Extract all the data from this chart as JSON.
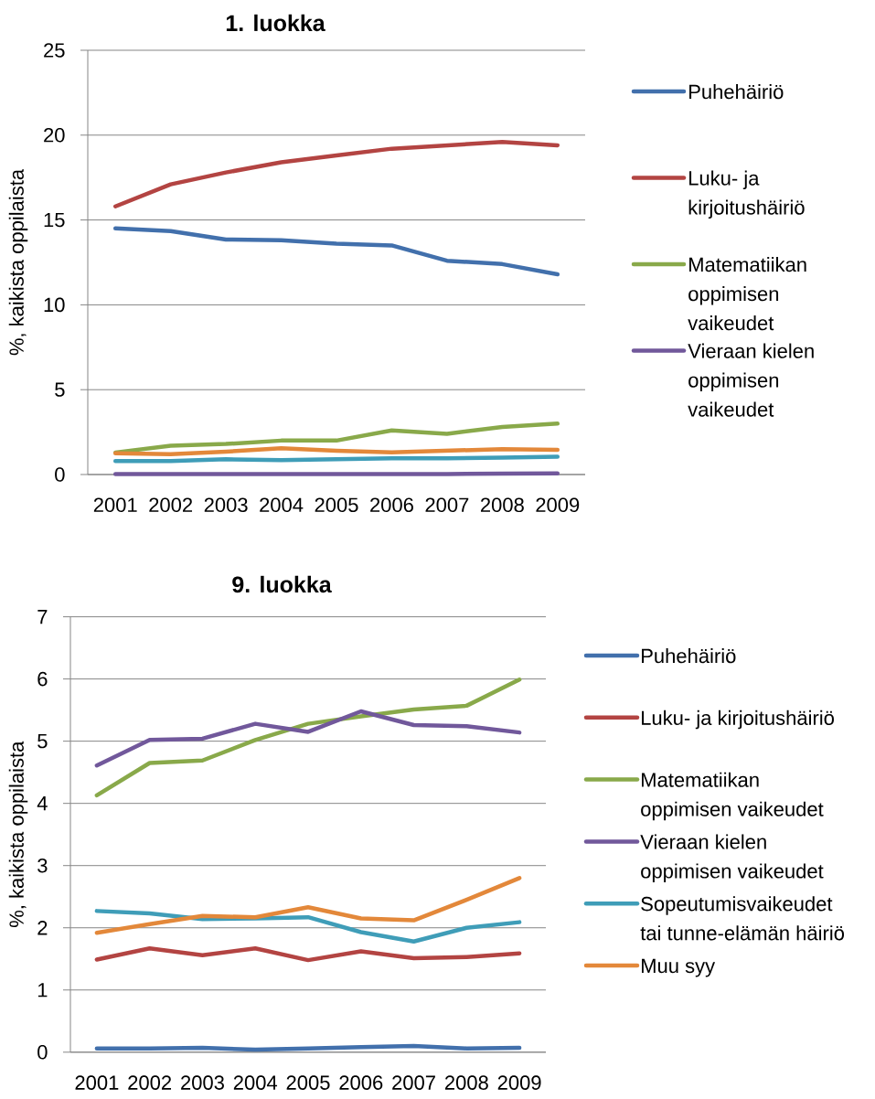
{
  "chart_data": [
    {
      "type": "line",
      "title": "1. luokka",
      "ylabel": "%, kaikista oppilaista",
      "categories": [
        "2001",
        "2002",
        "2003",
        "2004",
        "2005",
        "2006",
        "2007",
        "2008",
        "2009"
      ],
      "series": [
        {
          "name": "Puhehäiriö",
          "color": "#4270ac",
          "values": [
            14.5,
            14.35,
            13.85,
            13.8,
            13.6,
            13.5,
            12.6,
            12.4,
            11.8
          ]
        },
        {
          "name": "Luku- ja kirjoitushäiriö",
          "color": "#b34442",
          "values": [
            15.8,
            17.1,
            17.8,
            18.4,
            18.8,
            19.2,
            19.4,
            19.6,
            19.4
          ]
        },
        {
          "name": "Matematiikan oppimisen vaikeudet",
          "color": "#89a94a",
          "values": [
            1.3,
            1.7,
            1.8,
            2.0,
            2.0,
            2.6,
            2.4,
            2.8,
            3.0
          ]
        },
        {
          "name": "Vieraan kielen oppimisen vaikeudet",
          "color": "#71589b",
          "values": [
            0.02,
            0.02,
            0.02,
            0.02,
            0.02,
            0.03,
            0.03,
            0.05,
            0.07
          ]
        },
        {
          "color": "#3f9db8",
          "values": [
            0.8,
            0.8,
            0.9,
            0.85,
            0.9,
            0.95,
            0.95,
            1.0,
            1.05
          ]
        },
        {
          "color": "#e3883a",
          "values": [
            1.25,
            1.2,
            1.35,
            1.55,
            1.4,
            1.3,
            1.4,
            1.5,
            1.45
          ]
        }
      ],
      "ylim": [
        0,
        25
      ],
      "yticks": [
        0,
        5,
        10,
        15,
        20,
        25
      ],
      "grid": "y",
      "legend": "right"
    },
    {
      "type": "line",
      "title": "9. luokka",
      "ylabel": "%, kaikista oppilaista",
      "categories": [
        "2001",
        "2002",
        "2003",
        "2004",
        "2005",
        "2006",
        "2007",
        "2008",
        "2009"
      ],
      "series": [
        {
          "name": "Puhehäiriö",
          "color": "#4270ac",
          "values": [
            0.06,
            0.06,
            0.07,
            0.04,
            0.06,
            0.08,
            0.1,
            0.06,
            0.07
          ]
        },
        {
          "name": "Luku- ja kirjoitushäiriö",
          "color": "#b34442",
          "values": [
            1.49,
            1.67,
            1.56,
            1.67,
            1.48,
            1.62,
            1.51,
            1.53,
            1.59
          ]
        },
        {
          "name": "Matematiikan oppimisen vaikeudet",
          "color": "#89a94a",
          "values": [
            4.13,
            4.65,
            4.69,
            5.02,
            5.28,
            5.4,
            5.51,
            5.57,
            5.99
          ]
        },
        {
          "name": "Vieraan kielen oppimisen vaikeudet",
          "color": "#71589b",
          "values": [
            4.61,
            5.02,
            5.04,
            5.28,
            5.15,
            5.48,
            5.26,
            5.24,
            5.14
          ]
        },
        {
          "name": "Sopeutumisvaikeudet tai tunne-elämän häiriö",
          "color": "#3f9db8",
          "values": [
            2.27,
            2.23,
            2.14,
            2.15,
            2.17,
            1.93,
            1.78,
            2.0,
            2.09
          ]
        },
        {
          "name": "Muu syy",
          "color": "#e3883a",
          "values": [
            1.92,
            2.06,
            2.19,
            2.17,
            2.33,
            2.15,
            2.12,
            2.45,
            2.8
          ]
        }
      ],
      "ylim": [
        0,
        7
      ],
      "yticks": [
        0,
        1,
        2,
        3,
        4,
        5,
        6,
        7
      ],
      "grid": "y",
      "legend": "right"
    }
  ]
}
